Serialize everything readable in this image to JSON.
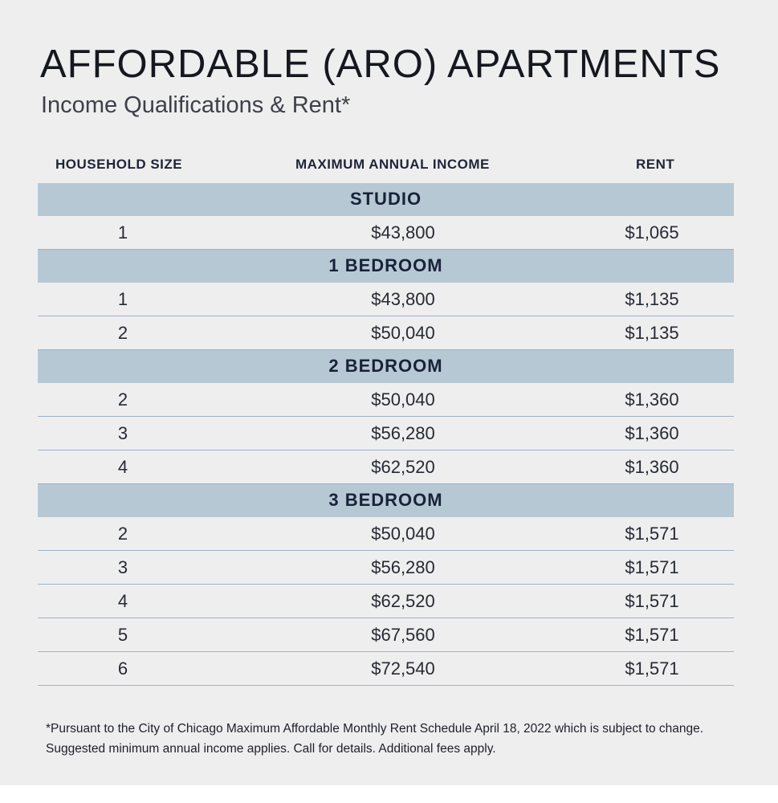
{
  "title": "AFFORDABLE (ARO) APARTMENTS",
  "subtitle": "Income Qualifications & Rent*",
  "columns": {
    "household_size": "HOUSEHOLD SIZE",
    "max_income": "MAXIMUM ANNUAL INCOME",
    "rent": "RENT"
  },
  "groups": [
    {
      "name": "STUDIO",
      "rows": [
        {
          "size": "1",
          "income": "$43,800",
          "rent": "$1,065"
        }
      ]
    },
    {
      "name": "1 BEDROOM",
      "rows": [
        {
          "size": "1",
          "income": "$43,800",
          "rent": "$1,135"
        },
        {
          "size": "2",
          "income": "$50,040",
          "rent": "$1,135"
        }
      ]
    },
    {
      "name": "2 BEDROOM",
      "rows": [
        {
          "size": "2",
          "income": "$50,040",
          "rent": "$1,360"
        },
        {
          "size": "3",
          "income": "$56,280",
          "rent": "$1,360"
        },
        {
          "size": "4",
          "income": "$62,520",
          "rent": "$1,360"
        }
      ]
    },
    {
      "name": "3 BEDROOM",
      "rows": [
        {
          "size": "2",
          "income": "$50,040",
          "rent": "$1,571"
        },
        {
          "size": "3",
          "income": "$56,280",
          "rent": "$1,571"
        },
        {
          "size": "4",
          "income": "$62,520",
          "rent": "$1,571"
        },
        {
          "size": "5",
          "income": "$67,560",
          "rent": "$1,571"
        },
        {
          "size": "6",
          "income": "$72,540",
          "rent": "$1,571"
        }
      ]
    }
  ],
  "footnote": {
    "line1": "*Pursuant to the City of Chicago Maximum Affordable Monthly Rent Schedule April 18, 2022 which is subject to change.",
    "line2": "Suggested minimum annual income applies. Call for details. Additional fees apply."
  },
  "colors": {
    "background": "#efeeef",
    "group_header_bg": "#b7c8d5",
    "row_divider": "#9fb1c5",
    "text_dark": "#1c1f2a"
  }
}
